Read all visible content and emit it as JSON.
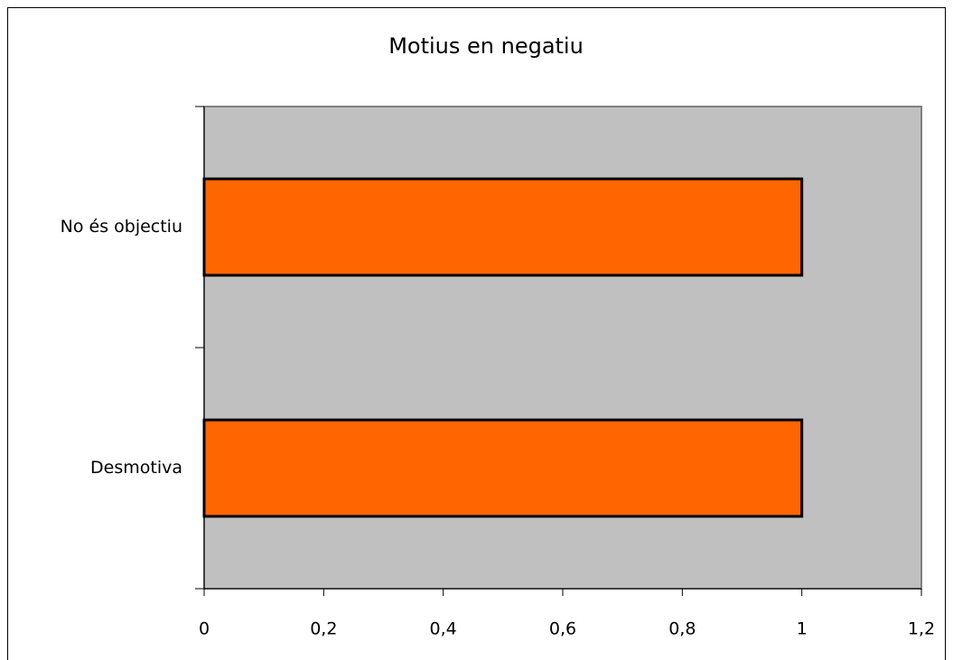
{
  "chart_data": {
    "type": "hbar",
    "title": "Motius en negatiu",
    "categories": [
      "Desmotiva",
      "No és objectiu"
    ],
    "values": [
      1,
      1
    ],
    "color": "#ff6600",
    "xlim": [
      0,
      1.2
    ],
    "xticks": [
      0,
      {
        "value": 0.2,
        "label": "0,2"
      },
      {
        "value": 0.4,
        "label": "0,4"
      },
      {
        "value": 0.6,
        "label": "0,6"
      },
      {
        "value": 0.8,
        "label": "0,8"
      },
      1,
      {
        "value": 1.2,
        "label": "1,2"
      }
    ],
    "grid": false
  }
}
